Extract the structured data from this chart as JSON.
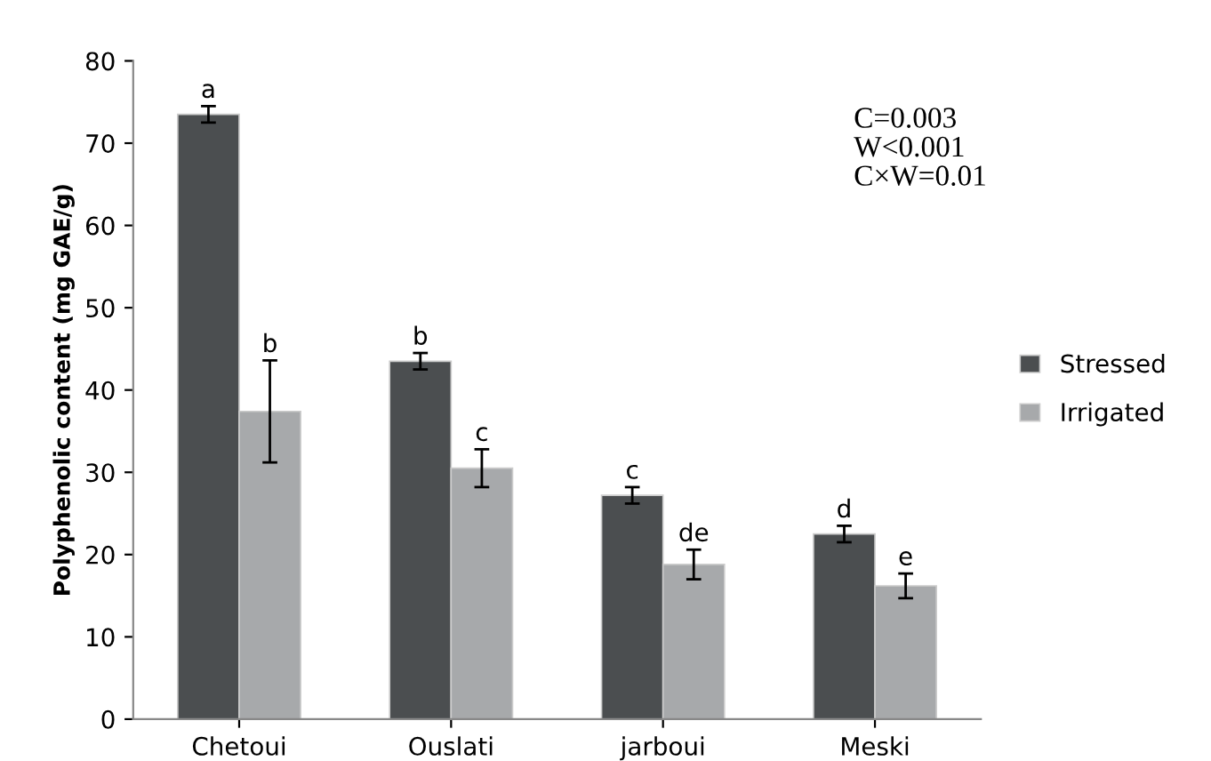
{
  "chart_data": {
    "type": "bar",
    "ylabel": "Polyphenolic content (mg GAE/g)",
    "categories": [
      "Chetoui",
      "Ouslati",
      "jarboui",
      "Meski"
    ],
    "series": [
      {
        "name": "Stressed",
        "color": "#4b4e50",
        "values": [
          73.5,
          43.5,
          27.2,
          22.5
        ],
        "errors": [
          1,
          1,
          1,
          1
        ],
        "value_labels": [
          "a",
          "b",
          "c",
          "d"
        ]
      },
      {
        "name": "Irrigated",
        "color": "#a7a9ab",
        "values": [
          37.4,
          30.5,
          18.8,
          16.2
        ],
        "errors": [
          6.2,
          2.3,
          1.8,
          1.5
        ],
        "value_labels": [
          "b",
          "c",
          "de",
          "e"
        ]
      }
    ],
    "ylim": [
      0,
      80
    ],
    "yticks": [
      0,
      10,
      20,
      30,
      40,
      50,
      60,
      70,
      80
    ],
    "grid": false,
    "legend": "right",
    "annotations": [
      "C=0.003\nW<0.001\nC×W=0.01"
    ]
  }
}
